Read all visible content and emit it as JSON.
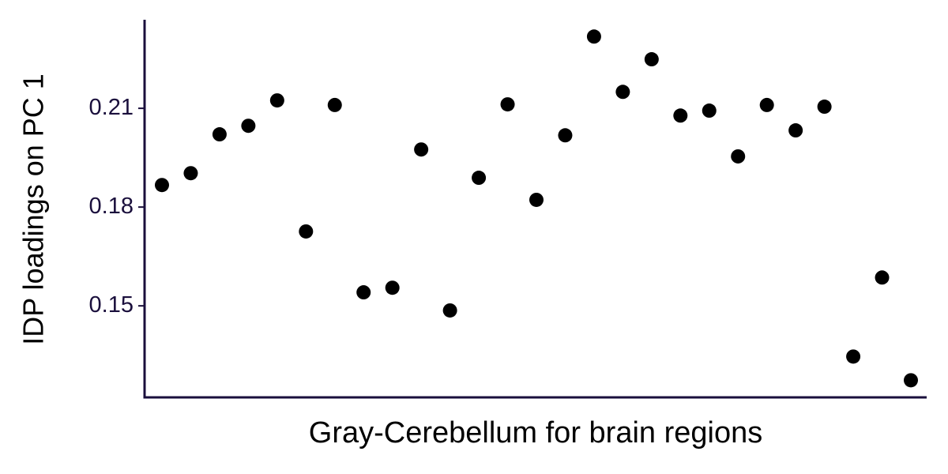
{
  "chart_data": {
    "type": "scatter",
    "xlabel": "Gray-Cerebellum for brain regions",
    "ylabel": "IDP loadings on PC 1",
    "categories": [
      null,
      null,
      null,
      null,
      null,
      null,
      null,
      null,
      null,
      null,
      null,
      null,
      null,
      null,
      null,
      null,
      null,
      null,
      null,
      null,
      null,
      null,
      null,
      null,
      null,
      null,
      null
    ],
    "values": [
      0.1867,
      0.1903,
      0.2021,
      0.2047,
      0.2124,
      0.1726,
      0.211,
      0.1541,
      0.1555,
      0.1975,
      0.1486,
      0.1889,
      0.2112,
      0.1822,
      0.2018,
      0.2318,
      0.215,
      0.2249,
      0.2078,
      0.2093,
      0.1954,
      0.211,
      0.2033,
      0.2105,
      0.1346,
      0.1586,
      0.1274
    ],
    "color": "#000000",
    "axis_color": "#1a0f3c",
    "ylim": [
      0.1222,
      0.2369
    ],
    "yticks": [
      0.15,
      0.18,
      0.21
    ]
  }
}
